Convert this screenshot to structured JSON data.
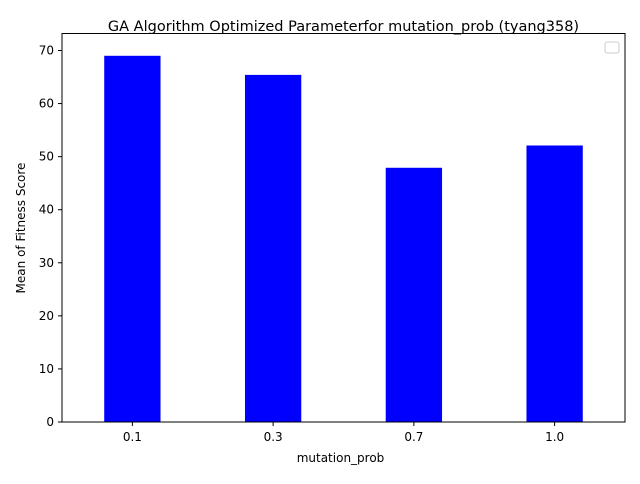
{
  "chart_data": {
    "type": "bar",
    "title": "GA Algorithm Optimized Parameterfor mutation_prob (tyang358)",
    "xlabel": "mutation_prob",
    "ylabel": "Mean of Fitness Score",
    "categories": [
      "0.1",
      "0.3",
      "0.7",
      "1.0"
    ],
    "values": [
      69.0,
      65.4,
      47.9,
      52.1
    ],
    "ylim": [
      0,
      73.2
    ],
    "yticks": [
      0,
      10,
      20,
      30,
      40,
      50,
      60,
      70
    ],
    "bar_color": "#0000ff",
    "grid": false,
    "legend": {
      "placement": "top-right",
      "entries": []
    }
  }
}
